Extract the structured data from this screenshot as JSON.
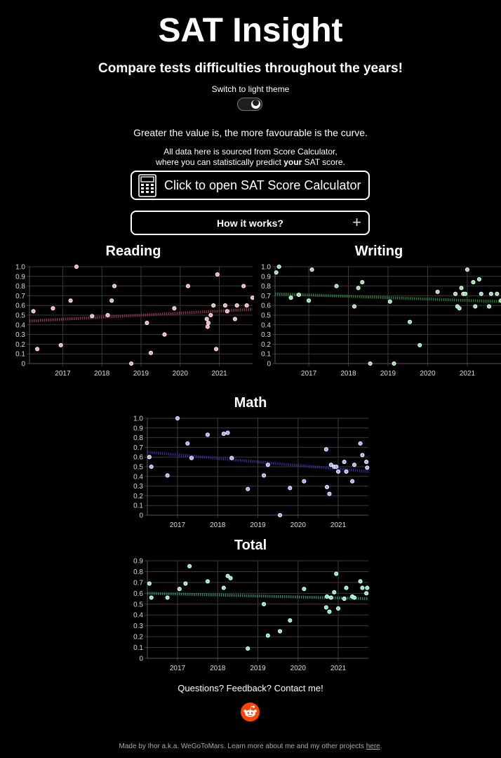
{
  "header": {
    "title": "SAT Insight",
    "subtitle": "Compare tests difficulties throughout the years!",
    "theme_toggle_label": "Switch to light theme",
    "note_favourable": "Greater the value is, the more favourable is the curve.",
    "source_line1": "All data here is sourced from Score Calculator,",
    "source_line2_pre": "where you can statistically predict ",
    "source_line2_bold": "your",
    "source_line2_post": " SAT score.",
    "calculator_button": "Click to open SAT Score Calculator",
    "how_button": "How it works?",
    "how_button_icon": "+"
  },
  "colors": {
    "reading": "#f4a7b9",
    "writing": "#8fe39a",
    "math": "#a9a9ff",
    "total": "#7fe6d0",
    "reading_trend": "#8a3946",
    "writing_trend": "#2f7a3a",
    "math_trend": "#2e2e8a",
    "total_trend": "#2f7f72"
  },
  "chart_data": [
    {
      "type": "scatter",
      "title": "Reading",
      "x_ticks": [
        "2017",
        "2018",
        "2019",
        "2020",
        "2021"
      ],
      "y_ticks": [
        "0",
        "0.1",
        "0.2",
        "0.3",
        "0.4",
        "0.5",
        "0.6",
        "0.7",
        "0.8",
        "0.9",
        "1.0"
      ],
      "xlim": [
        2016.15,
        2021.85
      ],
      "ylim": [
        0,
        1.0
      ],
      "trend": [
        0.44,
        0.56
      ],
      "points": [
        [
          2016.25,
          0.54
        ],
        [
          2016.35,
          0.15
        ],
        [
          2016.75,
          0.57
        ],
        [
          2016.95,
          0.19
        ],
        [
          2017.2,
          0.65
        ],
        [
          2017.35,
          1.0
        ],
        [
          2017.75,
          0.49
        ],
        [
          2018.15,
          0.5
        ],
        [
          2018.25,
          0.65
        ],
        [
          2018.32,
          0.8
        ],
        [
          2018.75,
          0.0
        ],
        [
          2019.15,
          0.42
        ],
        [
          2019.25,
          0.11
        ],
        [
          2019.6,
          0.3
        ],
        [
          2019.85,
          0.57
        ],
        [
          2020.2,
          0.8
        ],
        [
          2020.68,
          0.46
        ],
        [
          2020.7,
          0.38
        ],
        [
          2020.72,
          0.42
        ],
        [
          2020.78,
          0.5
        ],
        [
          2020.85,
          0.6
        ],
        [
          2020.92,
          0.15
        ],
        [
          2020.95,
          0.92
        ],
        [
          2021.15,
          0.6
        ],
        [
          2021.2,
          0.54
        ],
        [
          2021.4,
          0.46
        ],
        [
          2021.45,
          0.6
        ],
        [
          2021.62,
          0.8
        ],
        [
          2021.7,
          0.6
        ],
        [
          2021.85,
          0.68
        ]
      ]
    },
    {
      "type": "scatter",
      "title": "Writing",
      "x_ticks": [
        "2017",
        "2018",
        "2019",
        "2020",
        "2021"
      ],
      "y_ticks": [
        "0",
        "0.1",
        "0.2",
        "0.3",
        "0.4",
        "0.5",
        "0.6",
        "0.7",
        "0.8",
        "0.9",
        "1.0"
      ],
      "xlim": [
        2016.15,
        2021.85
      ],
      "ylim": [
        0,
        1.0
      ],
      "trend": [
        0.72,
        0.64
      ],
      "points": [
        [
          2016.18,
          0.94
        ],
        [
          2016.25,
          1.0
        ],
        [
          2016.55,
          0.68
        ],
        [
          2016.75,
          0.71
        ],
        [
          2017.0,
          0.65
        ],
        [
          2017.08,
          0.97
        ],
        [
          2017.7,
          0.8
        ],
        [
          2018.15,
          0.59
        ],
        [
          2018.25,
          0.78
        ],
        [
          2018.35,
          0.84
        ],
        [
          2018.55,
          0.0
        ],
        [
          2019.05,
          0.64
        ],
        [
          2019.15,
          0.0
        ],
        [
          2019.55,
          0.43
        ],
        [
          2019.8,
          0.19
        ],
        [
          2020.25,
          0.74
        ],
        [
          2020.7,
          0.72
        ],
        [
          2020.75,
          0.59
        ],
        [
          2020.8,
          0.57
        ],
        [
          2020.85,
          0.78
        ],
        [
          2020.9,
          0.72
        ],
        [
          2020.95,
          0.72
        ],
        [
          2021.0,
          0.97
        ],
        [
          2021.15,
          0.84
        ],
        [
          2021.2,
          0.59
        ],
        [
          2021.3,
          0.87
        ],
        [
          2021.35,
          0.72
        ],
        [
          2021.55,
          0.59
        ],
        [
          2021.6,
          0.72
        ],
        [
          2021.75,
          0.72
        ],
        [
          2021.85,
          0.65
        ]
      ]
    },
    {
      "type": "scatter",
      "title": "Math",
      "x_ticks": [
        "2017",
        "2018",
        "2019",
        "2020",
        "2021"
      ],
      "y_ticks": [
        "0",
        "0.1",
        "0.2",
        "0.3",
        "0.4",
        "0.5",
        "0.6",
        "0.7",
        "0.8",
        "0.9",
        "1.0"
      ],
      "xlim": [
        2016.25,
        2021.75
      ],
      "ylim": [
        0,
        1.0
      ],
      "trend": [
        0.65,
        0.45
      ],
      "points": [
        [
          2016.3,
          0.6
        ],
        [
          2016.35,
          0.5
        ],
        [
          2016.75,
          0.41
        ],
        [
          2017.0,
          1.0
        ],
        [
          2017.25,
          0.74
        ],
        [
          2017.35,
          0.59
        ],
        [
          2017.75,
          0.83
        ],
        [
          2018.15,
          0.84
        ],
        [
          2018.25,
          0.85
        ],
        [
          2018.35,
          0.59
        ],
        [
          2018.75,
          0.27
        ],
        [
          2019.15,
          0.41
        ],
        [
          2019.25,
          0.52
        ],
        [
          2019.55,
          0.0
        ],
        [
          2019.8,
          0.28
        ],
        [
          2020.15,
          0.35
        ],
        [
          2020.7,
          0.68
        ],
        [
          2020.72,
          0.29
        ],
        [
          2020.78,
          0.22
        ],
        [
          2020.82,
          0.52
        ],
        [
          2020.9,
          0.5
        ],
        [
          2020.95,
          0.5
        ],
        [
          2021.0,
          0.45
        ],
        [
          2021.15,
          0.55
        ],
        [
          2021.2,
          0.45
        ],
        [
          2021.35,
          0.35
        ],
        [
          2021.4,
          0.52
        ],
        [
          2021.55,
          0.74
        ],
        [
          2021.6,
          0.62
        ],
        [
          2021.7,
          0.55
        ],
        [
          2021.72,
          0.49
        ]
      ]
    },
    {
      "type": "scatter",
      "title": "Total",
      "x_ticks": [
        "2017",
        "2018",
        "2019",
        "2020",
        "2021"
      ],
      "y_ticks": [
        "0",
        "0.1",
        "0.2",
        "0.3",
        "0.4",
        "0.5",
        "0.6",
        "0.7",
        "0.8",
        "0.9"
      ],
      "xlim": [
        2016.25,
        2021.75
      ],
      "ylim": [
        0,
        0.9
      ],
      "trend": [
        0.6,
        0.55
      ],
      "points": [
        [
          2016.3,
          0.69
        ],
        [
          2016.35,
          0.56
        ],
        [
          2016.75,
          0.56
        ],
        [
          2017.05,
          0.64
        ],
        [
          2017.2,
          0.69
        ],
        [
          2017.3,
          0.85
        ],
        [
          2017.75,
          0.71
        ],
        [
          2018.15,
          0.65
        ],
        [
          2018.25,
          0.76
        ],
        [
          2018.32,
          0.74
        ],
        [
          2018.75,
          0.09
        ],
        [
          2019.15,
          0.5
        ],
        [
          2019.25,
          0.21
        ],
        [
          2019.55,
          0.25
        ],
        [
          2019.8,
          0.35
        ],
        [
          2020.15,
          0.64
        ],
        [
          2020.7,
          0.47
        ],
        [
          2020.72,
          0.57
        ],
        [
          2020.78,
          0.43
        ],
        [
          2020.82,
          0.56
        ],
        [
          2020.9,
          0.61
        ],
        [
          2020.95,
          0.78
        ],
        [
          2021.0,
          0.46
        ],
        [
          2021.15,
          0.55
        ],
        [
          2021.2,
          0.65
        ],
        [
          2021.35,
          0.57
        ],
        [
          2021.4,
          0.56
        ],
        [
          2021.55,
          0.71
        ],
        [
          2021.6,
          0.65
        ],
        [
          2021.7,
          0.6
        ],
        [
          2021.72,
          0.65
        ]
      ]
    }
  ],
  "footer": {
    "contact": "Questions? Feedback? Contact me!",
    "credit": "Made by Ihor a.k.a. WeGoToMars.  Learn more about me and my other projects ",
    "link": "here",
    "credit_end": "."
  }
}
